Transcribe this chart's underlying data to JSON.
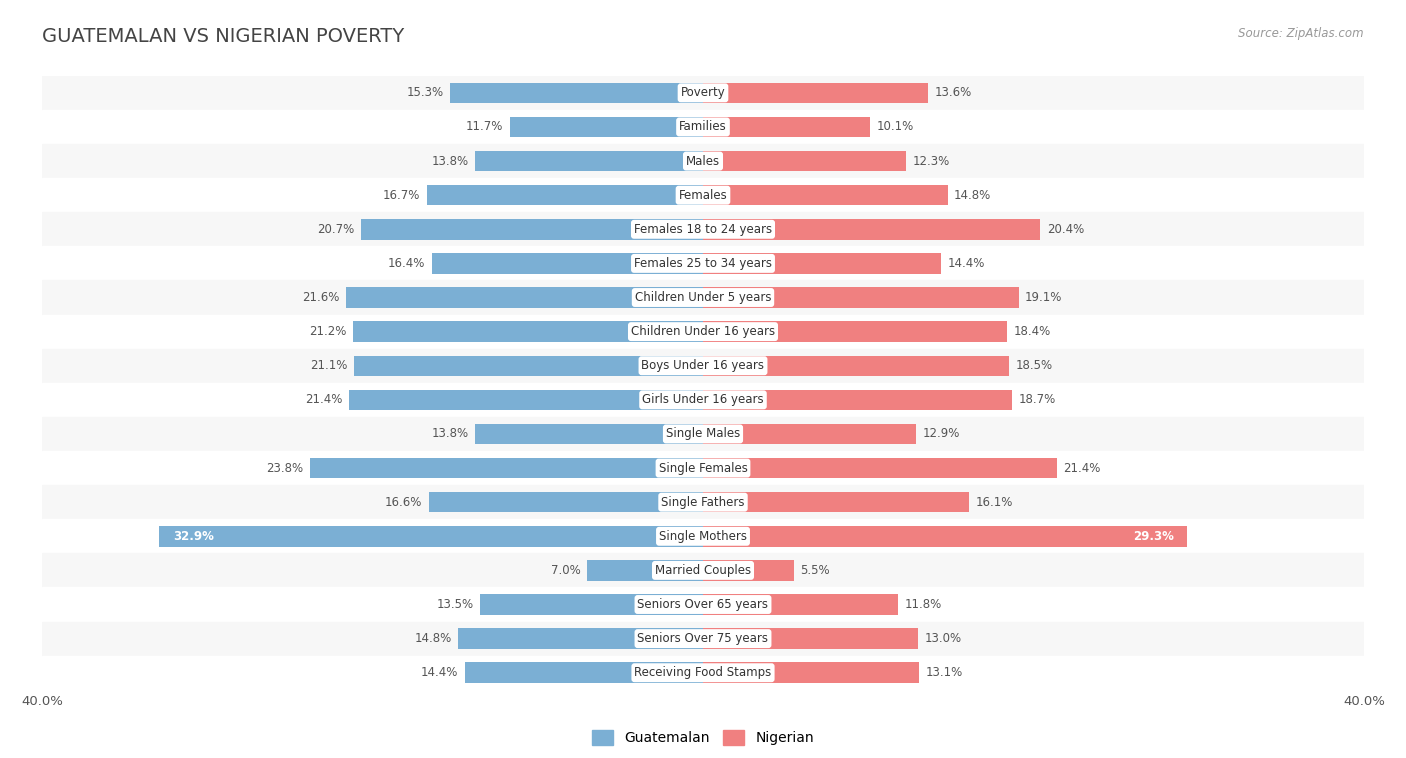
{
  "title": "GUATEMALAN VS NIGERIAN POVERTY",
  "source": "Source: ZipAtlas.com",
  "categories": [
    "Poverty",
    "Families",
    "Males",
    "Females",
    "Females 18 to 24 years",
    "Females 25 to 34 years",
    "Children Under 5 years",
    "Children Under 16 years",
    "Boys Under 16 years",
    "Girls Under 16 years",
    "Single Males",
    "Single Females",
    "Single Fathers",
    "Single Mothers",
    "Married Couples",
    "Seniors Over 65 years",
    "Seniors Over 75 years",
    "Receiving Food Stamps"
  ],
  "guatemalan": [
    15.3,
    11.7,
    13.8,
    16.7,
    20.7,
    16.4,
    21.6,
    21.2,
    21.1,
    21.4,
    13.8,
    23.8,
    16.6,
    32.9,
    7.0,
    13.5,
    14.8,
    14.4
  ],
  "nigerian": [
    13.6,
    10.1,
    12.3,
    14.8,
    20.4,
    14.4,
    19.1,
    18.4,
    18.5,
    18.7,
    12.9,
    21.4,
    16.1,
    29.3,
    5.5,
    11.8,
    13.0,
    13.1
  ],
  "guatemalan_color": "#7BAFD4",
  "nigerian_color": "#F08080",
  "background_color": "#FFFFFF",
  "row_color_even": "#F7F7F7",
  "row_color_odd": "#FFFFFF",
  "axis_max": 40.0,
  "bar_height": 0.6,
  "title_fontsize": 14,
  "label_fontsize": 8.5,
  "value_fontsize": 8.5,
  "tick_fontsize": 9.5,
  "title_color": "#444444",
  "source_color": "#999999",
  "value_color": "#555555",
  "legend_fontsize": 10
}
